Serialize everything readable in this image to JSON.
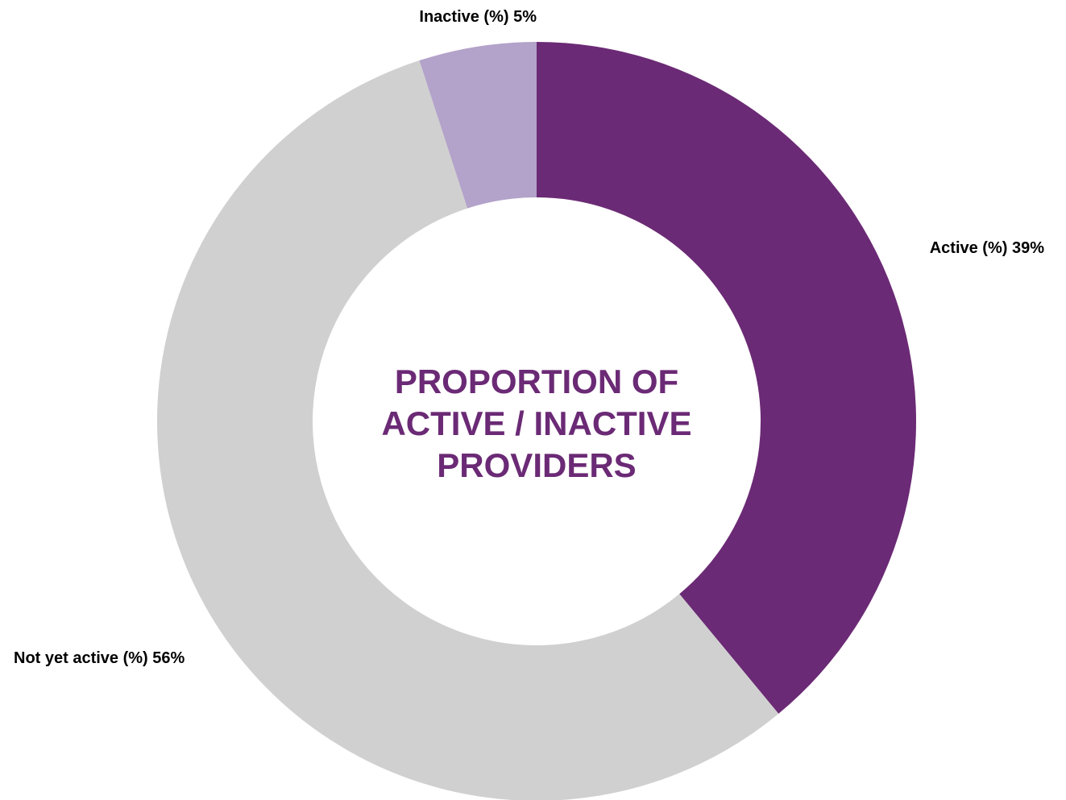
{
  "chart_data": {
    "type": "pie",
    "variant": "donut",
    "title_lines": [
      "PROPORTION OF",
      "ACTIVE / INACTIVE",
      "PROVIDERS"
    ],
    "title_color": "#6b2a75",
    "slices": [
      {
        "label": "Active (%)",
        "value": 39,
        "value_text": "39%",
        "color": "#6b2a75"
      },
      {
        "label": "Not yet active (%)",
        "value": 56,
        "value_text": "56%",
        "color": "#d0d0d0"
      },
      {
        "label": "Inactive (%)",
        "value": 5,
        "value_text": "5%",
        "color": "#b3a2c9"
      }
    ],
    "start": "12 o'clock",
    "direction": "clockwise",
    "data_labels": "outside"
  }
}
